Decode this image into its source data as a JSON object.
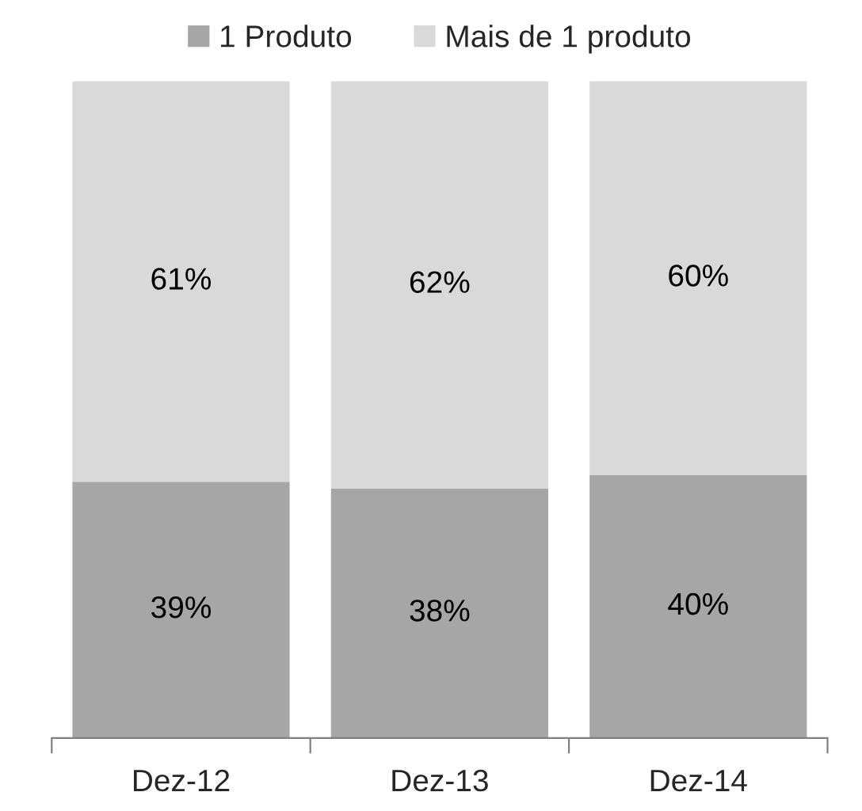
{
  "chart_data": {
    "type": "bar",
    "stacked": true,
    "categories": [
      "Dez-12",
      "Dez-13",
      "Dez-14"
    ],
    "series": [
      {
        "name": "1 Produto",
        "color": "#a6a6a6",
        "values": [
          39,
          38,
          40
        ],
        "value_labels": [
          "39%",
          "38%",
          "40%"
        ]
      },
      {
        "name": "Mais de 1 produto",
        "color": "#d9d9d9",
        "values": [
          61,
          62,
          60
        ],
        "value_labels": [
          "61%",
          "62%",
          "60%"
        ]
      }
    ],
    "legend": "top",
    "grid": false
  }
}
